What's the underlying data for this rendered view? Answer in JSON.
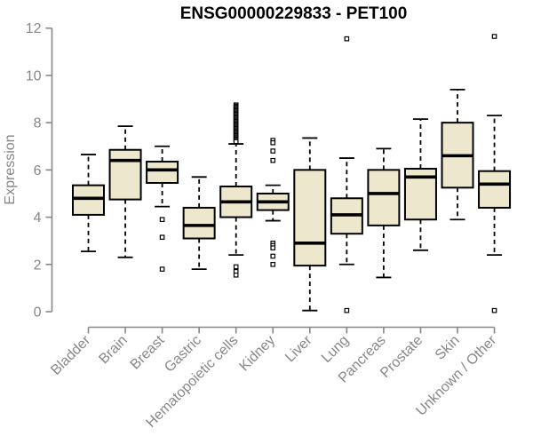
{
  "page": {
    "background": "#ffffff"
  },
  "chart_data": {
    "type": "boxplot",
    "title": "ENSG00000229833 - PET100",
    "ylabel": "Expression",
    "xlabel": "",
    "ylim": [
      0,
      12
    ],
    "yticks": [
      0,
      2,
      4,
      6,
      8,
      10,
      12
    ],
    "grid": false,
    "legend": "none",
    "box_fill": "#ede8cd",
    "box_stroke": "#000000",
    "median_color": "#000000",
    "whisker_color": "#000000",
    "axis_color": "#878787",
    "title_color": "#000000",
    "categories": [
      "Bladder",
      "Brain",
      "Breast",
      "Gastric",
      "Hematopoietic cells",
      "Kidney",
      "Liver",
      "Lung",
      "Pancreas",
      "Prostate",
      "Skin",
      "Unknown / Other"
    ],
    "series": [
      {
        "name": "Bladder",
        "low": 2.55,
        "q1": 4.1,
        "median": 4.8,
        "q3": 5.35,
        "high": 6.65,
        "outliers": []
      },
      {
        "name": "Brain",
        "low": 2.3,
        "q1": 4.75,
        "median": 6.4,
        "q3": 6.85,
        "high": 7.85,
        "outliers": []
      },
      {
        "name": "Breast",
        "low": 4.45,
        "q1": 5.45,
        "median": 6.0,
        "q3": 6.35,
        "high": 7.0,
        "outliers": [
          3.9,
          3.15,
          1.8
        ]
      },
      {
        "name": "Gastric",
        "low": 1.8,
        "q1": 3.1,
        "median": 3.65,
        "q3": 4.4,
        "high": 5.7,
        "outliers": []
      },
      {
        "name": "Hematopoietic cells",
        "low": 2.4,
        "q1": 4.0,
        "median": 4.65,
        "q3": 5.3,
        "high": 7.1,
        "outliers": [
          8.75,
          8.7,
          8.65,
          8.6,
          8.55,
          8.5,
          8.45,
          8.4,
          8.35,
          8.3,
          8.25,
          8.2,
          8.15,
          8.1,
          8.05,
          8.0,
          7.95,
          7.9,
          7.85,
          7.8,
          7.75,
          7.7,
          7.65,
          7.6,
          7.55,
          7.5,
          7.45,
          7.4,
          7.35,
          7.3,
          7.25,
          7.2,
          1.9,
          1.7,
          1.55
        ]
      },
      {
        "name": "Kidney",
        "low": 3.85,
        "q1": 4.3,
        "median": 4.65,
        "q3": 5.0,
        "high": 5.35,
        "outliers": [
          7.25,
          7.15,
          6.8,
          6.4,
          2.9,
          2.8,
          2.7,
          2.35,
          2.0
        ]
      },
      {
        "name": "Liver",
        "low": 0.05,
        "q1": 1.95,
        "median": 2.9,
        "q3": 6.0,
        "high": 7.35,
        "outliers": []
      },
      {
        "name": "Lung",
        "low": 2.0,
        "q1": 3.3,
        "median": 4.1,
        "q3": 4.8,
        "high": 6.5,
        "outliers": [
          11.55,
          0.05
        ]
      },
      {
        "name": "Pancreas",
        "low": 1.45,
        "q1": 3.65,
        "median": 5.0,
        "q3": 6.0,
        "high": 6.9,
        "outliers": []
      },
      {
        "name": "Prostate",
        "low": 2.6,
        "q1": 3.9,
        "median": 5.7,
        "q3": 6.05,
        "high": 8.15,
        "outliers": []
      },
      {
        "name": "Skin",
        "low": 3.9,
        "q1": 5.25,
        "median": 6.6,
        "q3": 8.0,
        "high": 9.4,
        "outliers": []
      },
      {
        "name": "Unknown / Other",
        "low": 2.4,
        "q1": 4.4,
        "median": 5.4,
        "q3": 5.95,
        "high": 8.3,
        "outliers": [
          11.65,
          0.05
        ]
      }
    ]
  }
}
